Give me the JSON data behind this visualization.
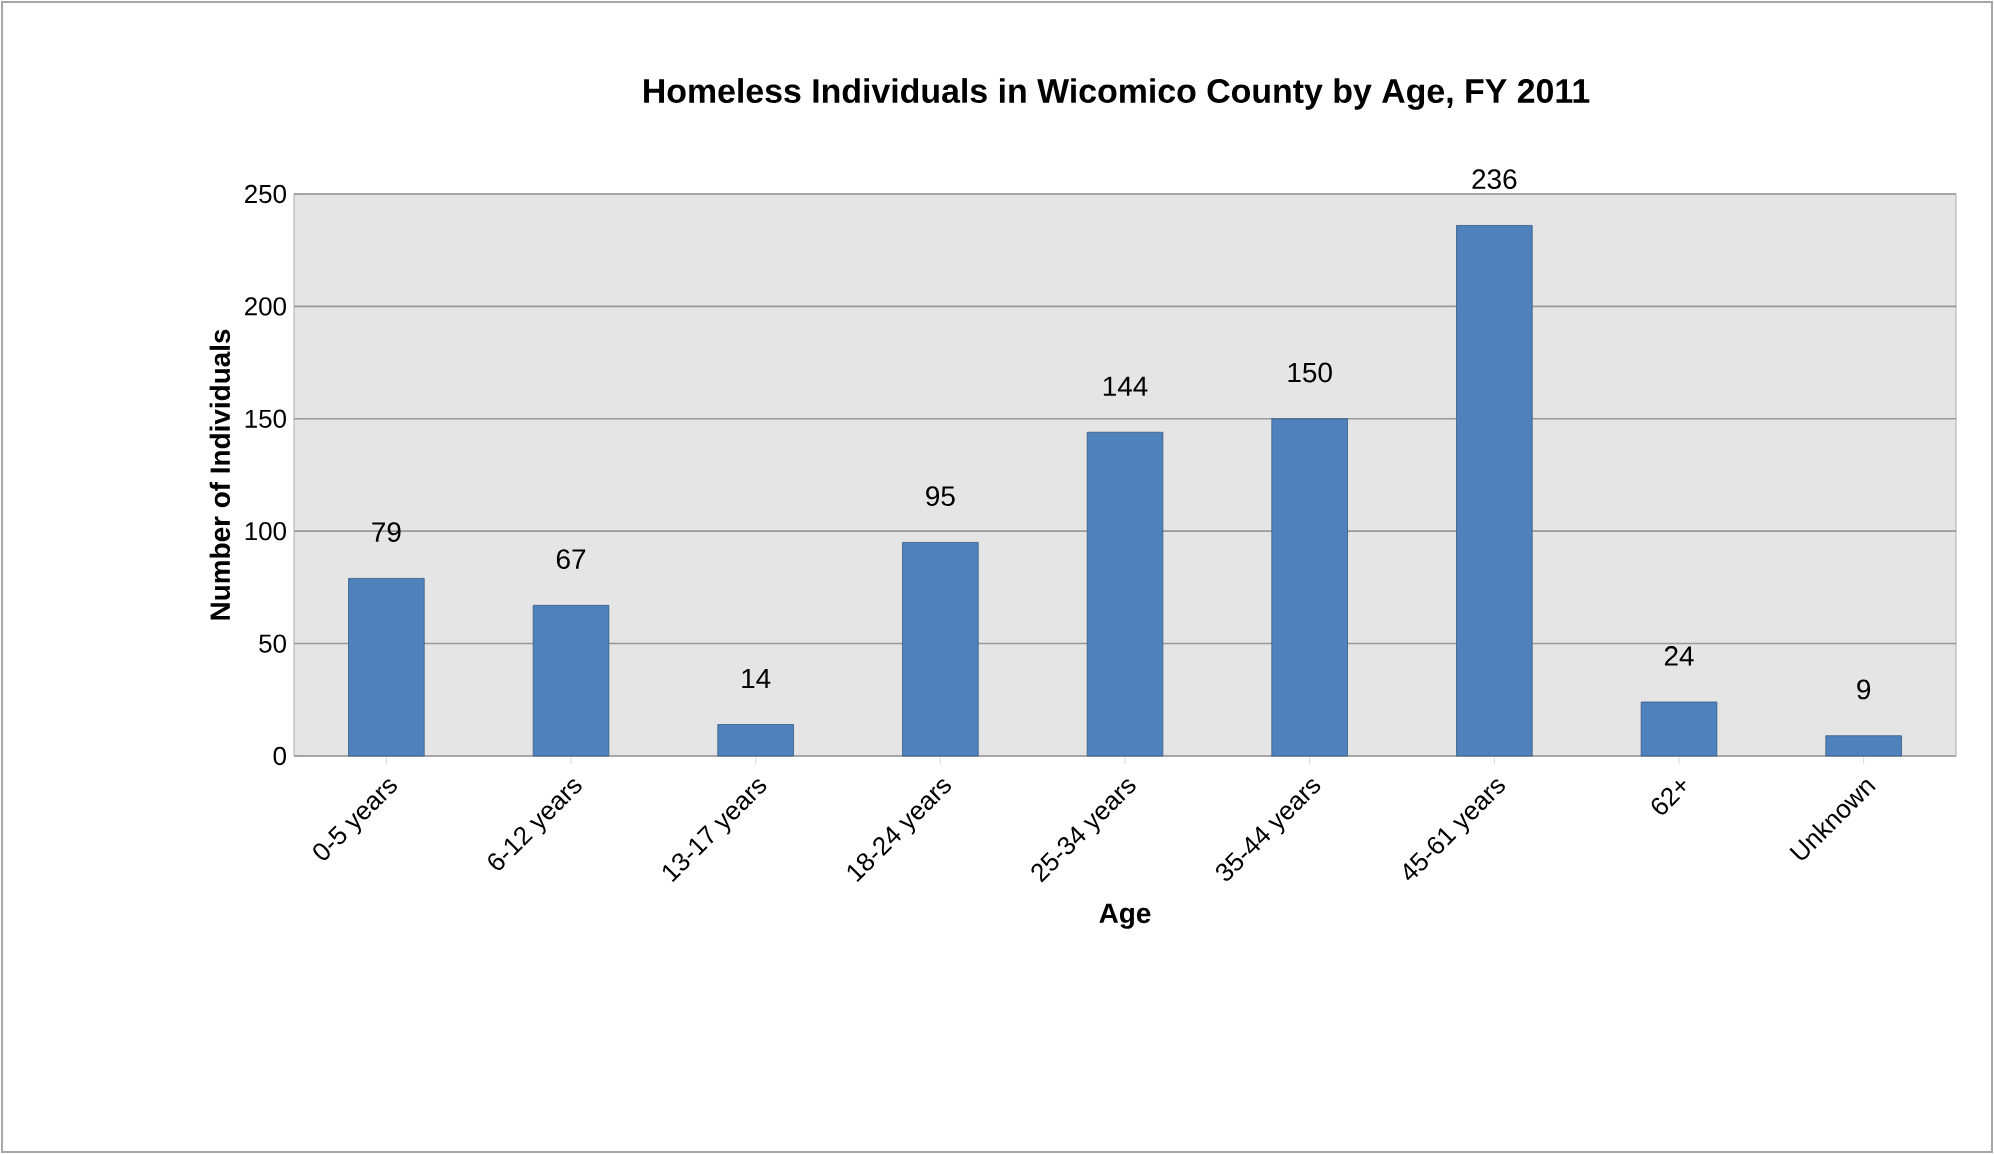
{
  "chart_data": {
    "type": "bar",
    "title": "Homeless Individuals in Wicomico County by Age, FY 2011",
    "xlabel": "Age",
    "ylabel": "Number of Individuals",
    "categories": [
      "0-5 years",
      "6-12 years",
      "13-17 years",
      "18-24 years",
      "25-34 years",
      "35-44 years",
      "45-61 years",
      "62+",
      "Unknown"
    ],
    "values": [
      79,
      67,
      14,
      95,
      144,
      150,
      236,
      24,
      9
    ],
    "color": "#4f81bd",
    "ylim": [
      0,
      250
    ],
    "yticks": [
      0,
      50,
      100,
      150,
      200,
      250
    ],
    "grid": "y",
    "data_labels": true
  }
}
